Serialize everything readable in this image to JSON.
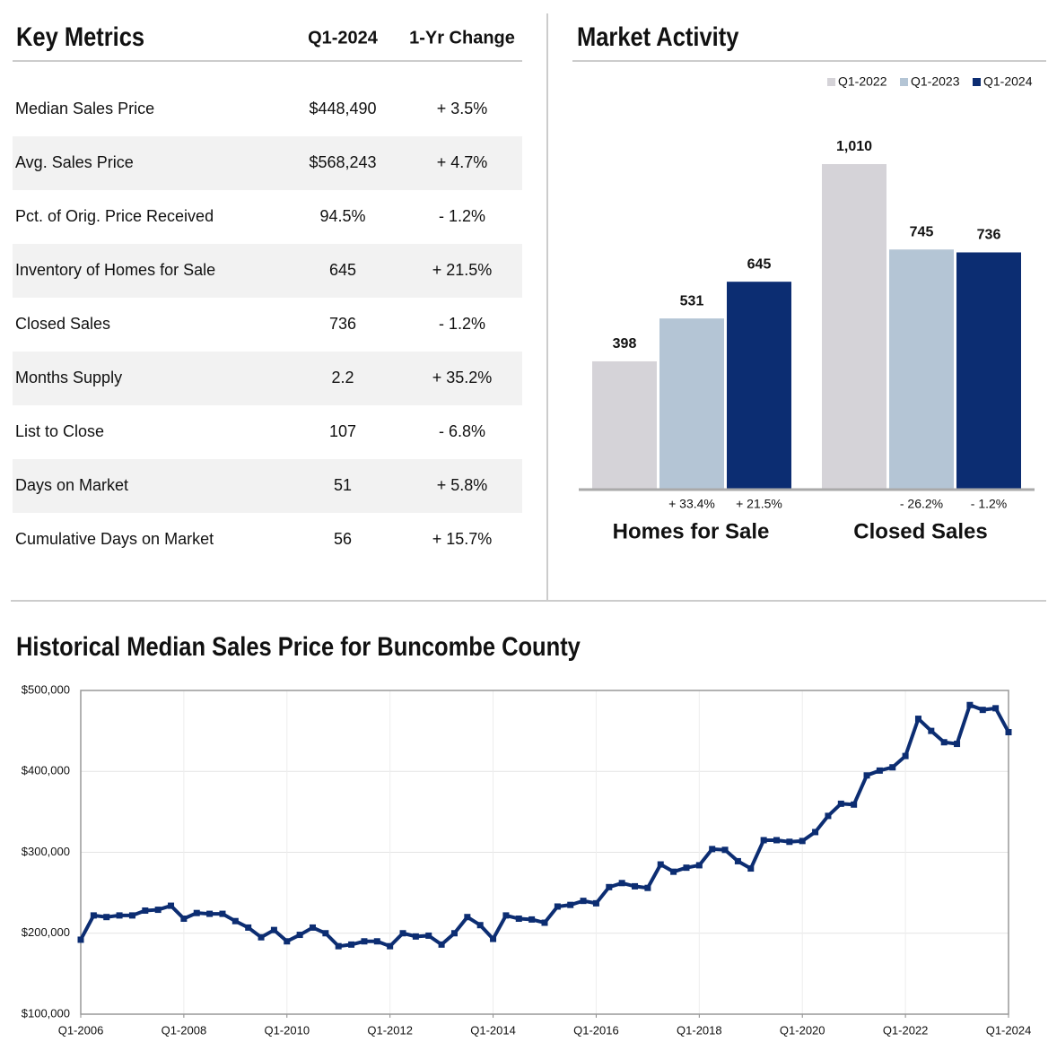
{
  "key_metrics": {
    "title": "Key Metrics",
    "columns": [
      "Q1-2024",
      "1-Yr Change"
    ],
    "rows": [
      [
        "Median Sales Price",
        "$448,490",
        "+ 3.5%"
      ],
      [
        "Avg. Sales Price",
        "$568,243",
        "+ 4.7%"
      ],
      [
        "Pct. of Orig. Price Received",
        "94.5%",
        "- 1.2%"
      ],
      [
        "Inventory of Homes for Sale",
        "645",
        "+ 21.5%"
      ],
      [
        "Closed Sales",
        "736",
        "- 1.2%"
      ],
      [
        "Months Supply",
        "2.2",
        "+ 35.2%"
      ],
      [
        "List to Close",
        "107",
        "- 6.8%"
      ],
      [
        "Days on Market",
        "51",
        "+ 5.8%"
      ],
      [
        "Cumulative Days on Market",
        "56",
        "+ 15.7%"
      ]
    ]
  },
  "chart_data": [
    {
      "type": "bar",
      "title": "Market Activity",
      "legend": "top-right",
      "categories": [
        "Homes for Sale",
        "Closed Sales"
      ],
      "series": [
        {
          "name": "Q1-2022",
          "color": "#d5d3d8",
          "values": [
            398,
            1010
          ],
          "value_labels": [
            "398",
            "1,010"
          ]
        },
        {
          "name": "Q1-2023",
          "color": "#b4c5d5",
          "values": [
            531,
            745
          ],
          "value_labels": [
            "531",
            "745"
          ],
          "changes": [
            "+ 33.4%",
            "- 26.2%"
          ]
        },
        {
          "name": "Q1-2024",
          "color": "#0c2d72",
          "values": [
            645,
            736
          ],
          "value_labels": [
            "645",
            "736"
          ],
          "changes": [
            "+ 21.5%",
            "- 1.2%"
          ]
        }
      ]
    },
    {
      "type": "line",
      "title": "Historical Median Sales Price for Buncombe County",
      "color": "#0c2d72",
      "grid": true,
      "categories": [
        "Q1-2006",
        null,
        null,
        null,
        null,
        null,
        null,
        null,
        "Q1-2008",
        null,
        null,
        null,
        null,
        null,
        null,
        null,
        "Q1-2010",
        null,
        null,
        null,
        null,
        null,
        null,
        null,
        "Q1-2012",
        null,
        null,
        null,
        null,
        null,
        null,
        null,
        "Q1-2014",
        null,
        null,
        null,
        null,
        null,
        null,
        null,
        "Q1-2016",
        null,
        null,
        null,
        null,
        null,
        null,
        null,
        "Q1-2018",
        null,
        null,
        null,
        null,
        null,
        null,
        null,
        "Q1-2020",
        null,
        null,
        null,
        null,
        null,
        null,
        null,
        "Q1-2022",
        null,
        null,
        null,
        null,
        null,
        null,
        null,
        "Q1-2024"
      ],
      "values": [
        192000,
        222000,
        220000,
        222000,
        222000,
        228000,
        229000,
        234000,
        218000,
        225000,
        224000,
        224000,
        215000,
        207000,
        195000,
        204000,
        190000,
        198000,
        207000,
        200000,
        184000,
        186000,
        190000,
        190000,
        184000,
        200000,
        196000,
        197000,
        186000,
        200000,
        220000,
        210000,
        193000,
        222000,
        218000,
        217000,
        213000,
        233000,
        235000,
        240000,
        237000,
        257000,
        262000,
        258000,
        256000,
        285000,
        276000,
        281000,
        284000,
        304000,
        303000,
        289000,
        280000,
        315000,
        315000,
        313000,
        314000,
        325000,
        345000,
        360000,
        359000,
        395000,
        401000,
        405000,
        419000,
        465000,
        450000,
        436000,
        434000,
        482000,
        476000,
        478000,
        448490
      ],
      "ylim": [
        100000,
        500000
      ],
      "yticks": [
        {
          "value": 100000,
          "label": "$100,000"
        },
        {
          "value": 200000,
          "label": "$200,000"
        },
        {
          "value": 300000,
          "label": "$300,000"
        },
        {
          "value": 400000,
          "label": "$400,000"
        },
        {
          "value": 500000,
          "label": "$500,000"
        }
      ]
    }
  ]
}
